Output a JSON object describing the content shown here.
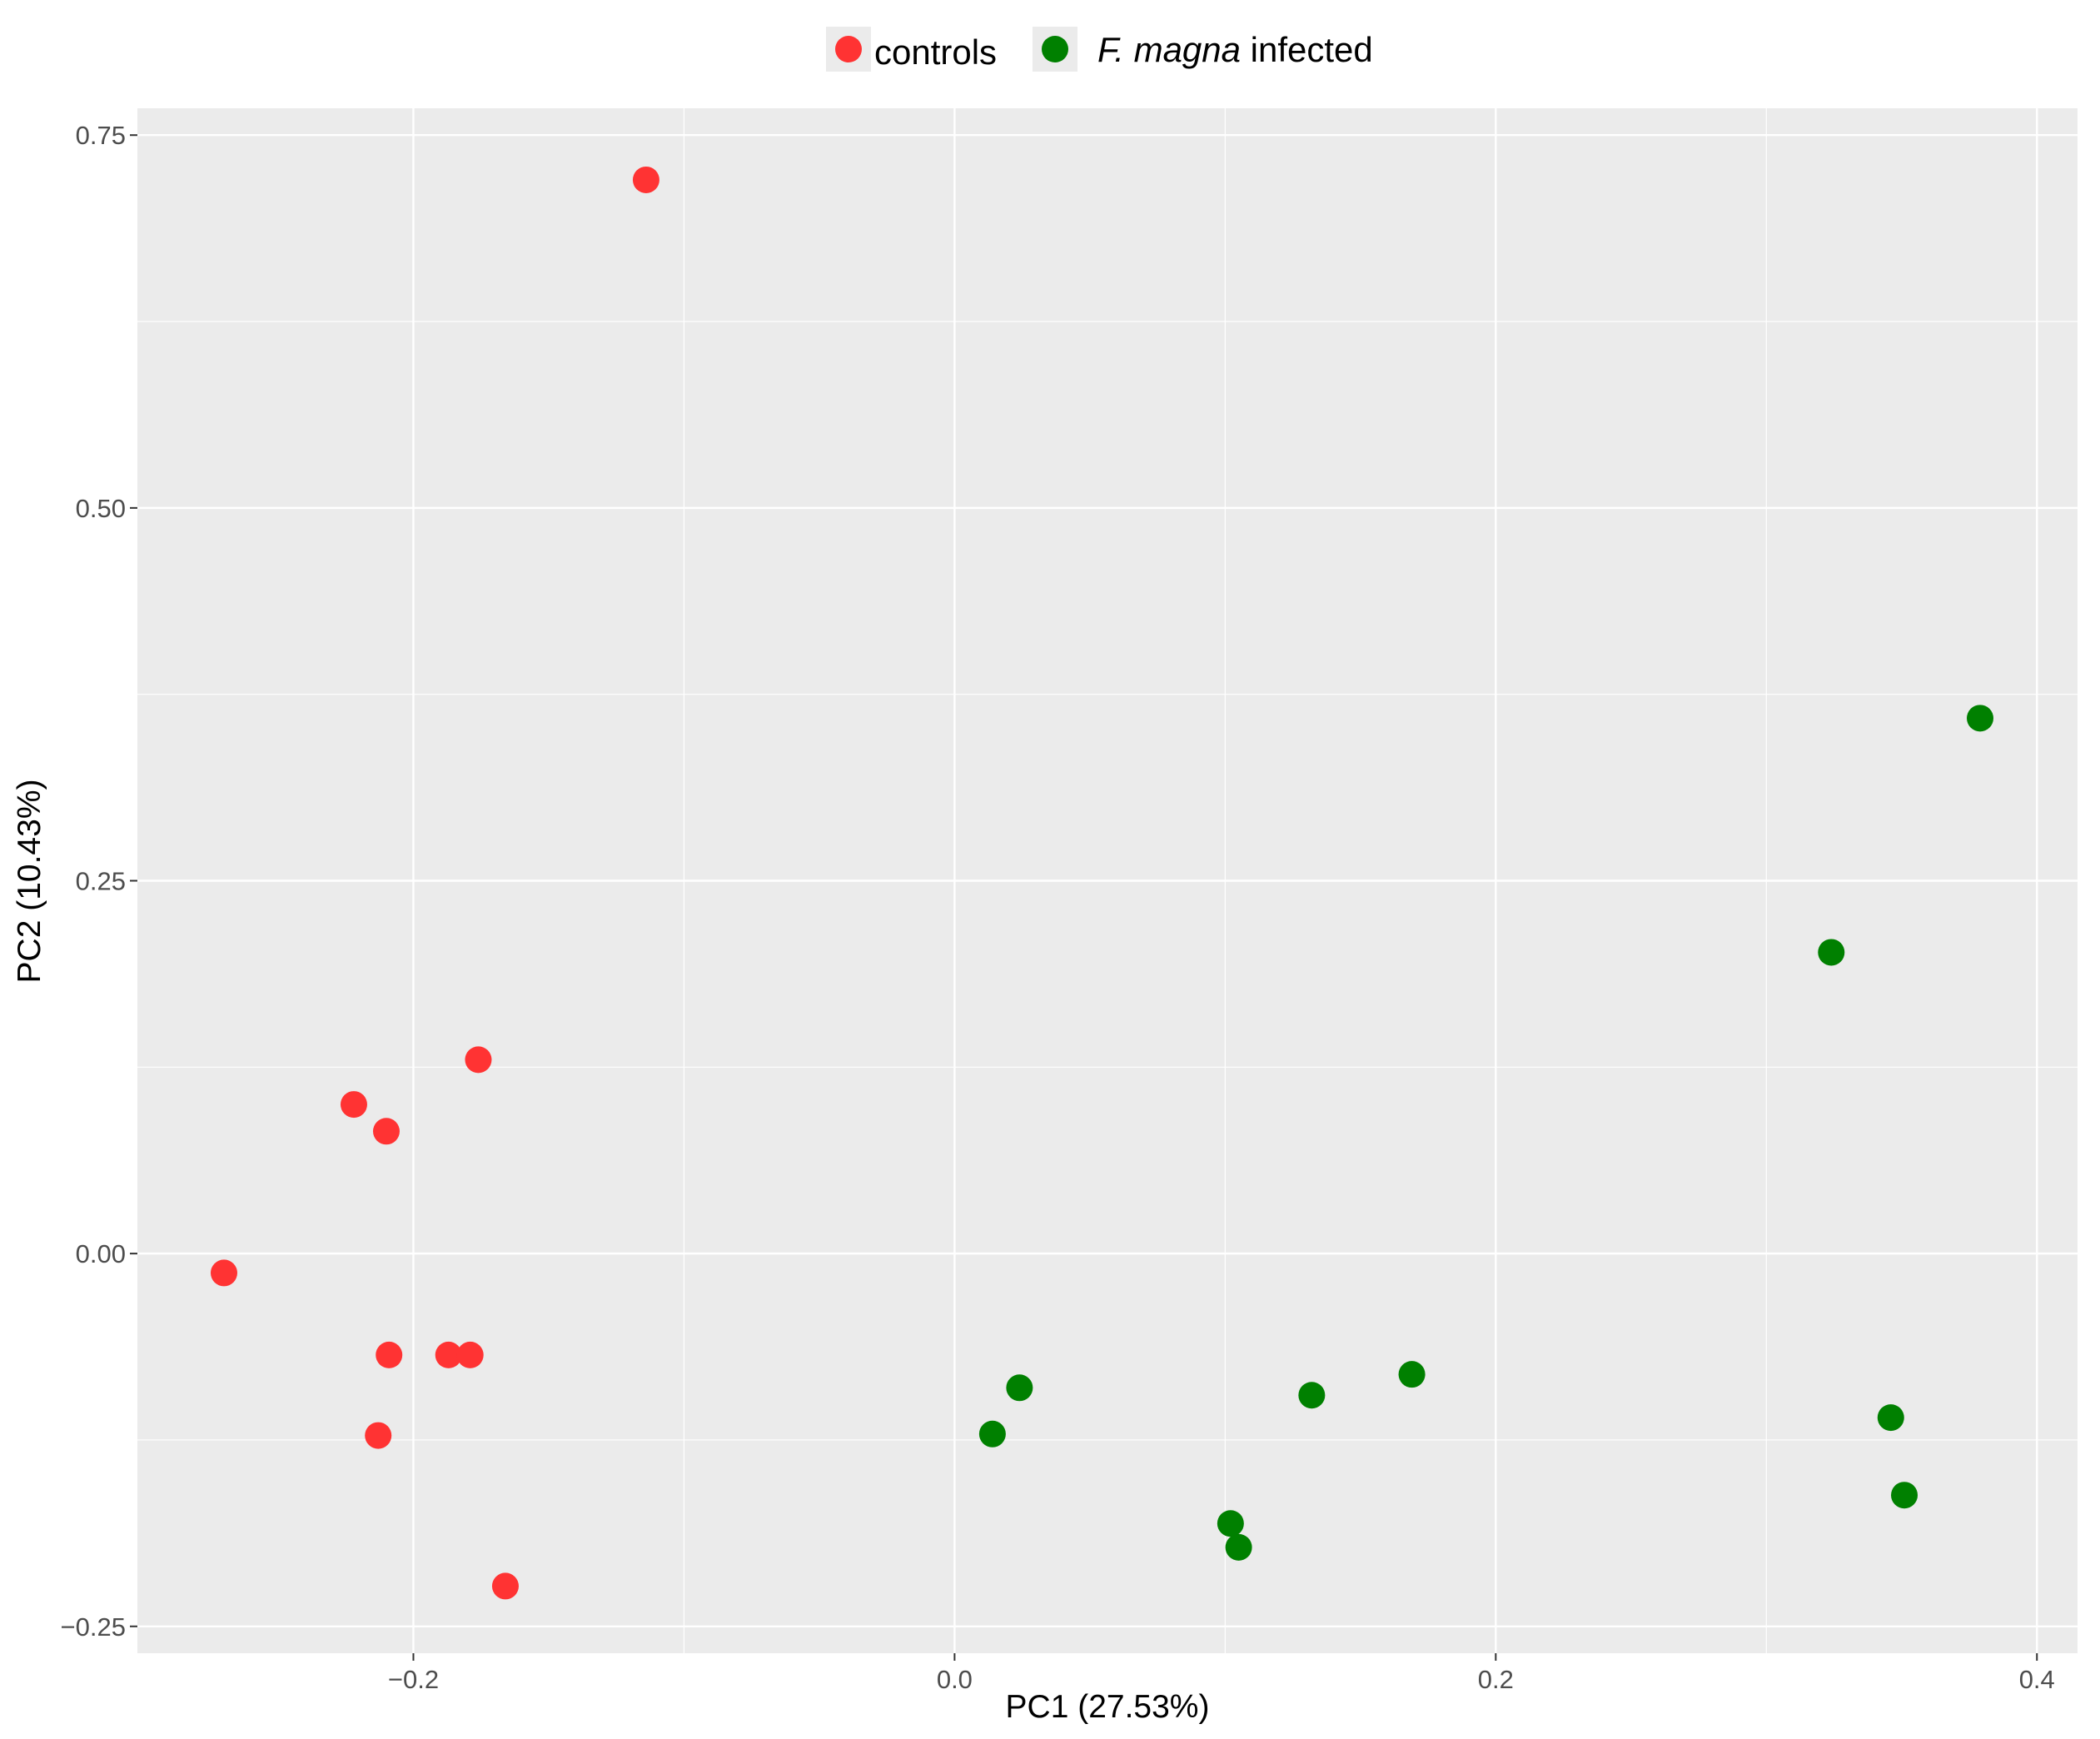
{
  "chart_data": {
    "type": "scatter",
    "xlabel": "PC1 (27.53%)",
    "ylabel": "PC2 (10.43%)",
    "xlim": [
      -0.302,
      0.415
    ],
    "ylim": [
      -0.268,
      0.768
    ],
    "x_ticks": [
      -0.2,
      0.0,
      0.2,
      0.4
    ],
    "x_tick_labels": [
      "−0.2",
      "0.0",
      "0.2",
      "0.4"
    ],
    "y_ticks": [
      -0.25,
      0.0,
      0.25,
      0.5,
      0.75
    ],
    "y_tick_labels": [
      "−0.25",
      "0.00",
      "0.25",
      "0.50",
      "0.75"
    ],
    "grid": true,
    "legend_position": "top",
    "legend": [
      {
        "label": "controls",
        "color": "#ff3333"
      },
      {
        "label_italic": "F. magna",
        "label_rest": "infected",
        "color": "#008000"
      }
    ],
    "series": [
      {
        "name": "controls",
        "color": "#ff3333",
        "points": [
          {
            "x": -0.114,
            "y": 0.72
          },
          {
            "x": -0.176,
            "y": 0.13
          },
          {
            "x": -0.222,
            "y": 0.1
          },
          {
            "x": -0.21,
            "y": 0.082
          },
          {
            "x": -0.27,
            "y": -0.013
          },
          {
            "x": -0.209,
            "y": -0.068
          },
          {
            "x": -0.187,
            "y": -0.068
          },
          {
            "x": -0.179,
            "y": -0.068
          },
          {
            "x": -0.213,
            "y": -0.122
          },
          {
            "x": -0.166,
            "y": -0.223
          }
        ]
      },
      {
        "name": "F. magna infected",
        "color": "#008000",
        "points": [
          {
            "x": 0.024,
            "y": -0.09
          },
          {
            "x": 0.014,
            "y": -0.121
          },
          {
            "x": 0.132,
            "y": -0.095
          },
          {
            "x": 0.169,
            "y": -0.081
          },
          {
            "x": 0.102,
            "y": -0.181
          },
          {
            "x": 0.105,
            "y": -0.197
          },
          {
            "x": 0.324,
            "y": 0.202
          },
          {
            "x": 0.379,
            "y": 0.359
          },
          {
            "x": 0.346,
            "y": -0.11
          },
          {
            "x": 0.351,
            "y": -0.162
          }
        ]
      }
    ]
  }
}
